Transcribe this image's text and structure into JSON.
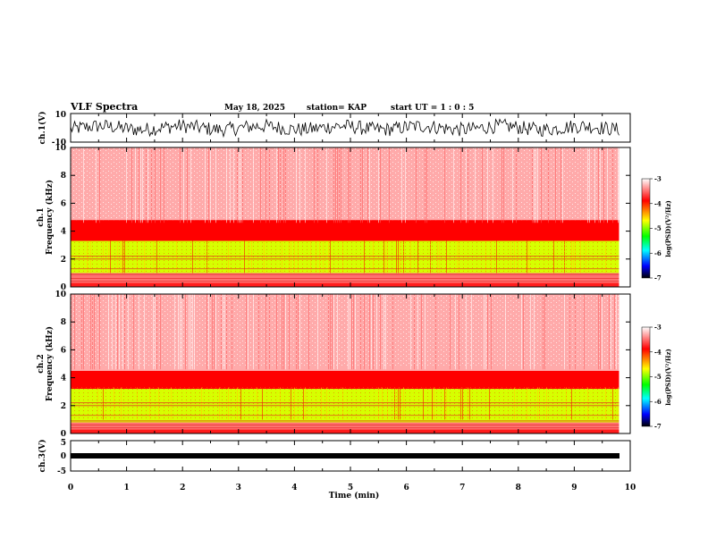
{
  "header": {
    "title": "VLF Spectra",
    "date": "May 18, 2025",
    "station": "station= KAP",
    "start": "start  UT =   1 : 0  : 5"
  },
  "chart_data": [
    {
      "type": "line",
      "panel": "ch1-waveform",
      "ylabel": "ch.1(V)",
      "ylim": [
        -10,
        10
      ],
      "yticks": [
        "10",
        "-10"
      ],
      "xlim": [
        0,
        10
      ],
      "color": "#000000",
      "description_values": "noisy waveform, amplitude approx -6 to +6 V, centered near 0"
    },
    {
      "type": "heatmap",
      "panel": "ch1-spectrogram",
      "ylabel": "ch.1\nFrequency (kHz)",
      "ylabel_line1": "ch.1",
      "ylabel_line2": "Frequency (kHz)",
      "ylim": [
        0,
        10
      ],
      "yticks": [
        "0",
        "2",
        "4",
        "6",
        "8",
        "10"
      ],
      "xlim": [
        0,
        9.8
      ],
      "bands": [
        {
          "f_min": 0,
          "f_max": 0.3,
          "log_psd": -3.8
        },
        {
          "f_min": 0.3,
          "f_max": 1.0,
          "log_psd": -3.5
        },
        {
          "f_min": 1.0,
          "f_max": 3.3,
          "log_psd": -4.8
        },
        {
          "f_min": 3.3,
          "f_max": 4.8,
          "log_psd": -3.9
        },
        {
          "f_min": 4.8,
          "f_max": 10,
          "log_psd": -3.3
        }
      ],
      "colorbar": {
        "label": "log(PSD)(V²/Hz)",
        "range": [
          -7,
          -3
        ],
        "ticks": [
          "-3",
          "-4",
          "-5",
          "-6",
          "-7"
        ]
      }
    },
    {
      "type": "heatmap",
      "panel": "ch2-spectrogram",
      "ylabel_line1": "ch.2",
      "ylabel_line2": "Frequency (kHz)",
      "ylim": [
        0,
        10
      ],
      "yticks": [
        "0",
        "2",
        "4",
        "6",
        "8",
        "10"
      ],
      "xlim": [
        0,
        9.8
      ],
      "bands": [
        {
          "f_min": 0,
          "f_max": 0.3,
          "log_psd": -3.8
        },
        {
          "f_min": 0.3,
          "f_max": 0.8,
          "log_psd": -3.5
        },
        {
          "f_min": 0.8,
          "f_max": 3.2,
          "log_psd": -4.8
        },
        {
          "f_min": 3.2,
          "f_max": 4.5,
          "log_psd": -3.9
        },
        {
          "f_min": 4.5,
          "f_max": 10,
          "log_psd": -3.3
        }
      ],
      "colorbar": {
        "label": "log(PSD)(V²/Hz)",
        "range": [
          -7,
          -3
        ],
        "ticks": [
          "-3",
          "-4",
          "-5",
          "-6",
          "-7"
        ]
      }
    },
    {
      "type": "line",
      "panel": "ch3-waveform",
      "ylabel": "ch.3(V)",
      "ylim": [
        -5,
        5
      ],
      "yticks": [
        "5",
        "0",
        "-5"
      ],
      "xlim": [
        0,
        9.8
      ],
      "color": "#000000",
      "description_values": "flat thick trace near -0.5 V"
    }
  ],
  "xaxis": {
    "label": "Time (min)",
    "range": [
      0,
      10
    ],
    "ticks": [
      "0",
      "1",
      "2",
      "3",
      "4",
      "5",
      "6",
      "7",
      "8",
      "9",
      "10"
    ]
  },
  "colorbar": {
    "label": "log(PSD)(V²/Hz)",
    "ticks": [
      "-3",
      "-4",
      "-5",
      "-6",
      "-7"
    ],
    "colors": [
      "#ffffff",
      "#ff0000",
      "#ffff00",
      "#00ff00",
      "#00ffff",
      "#0000ff",
      "#000000"
    ]
  }
}
